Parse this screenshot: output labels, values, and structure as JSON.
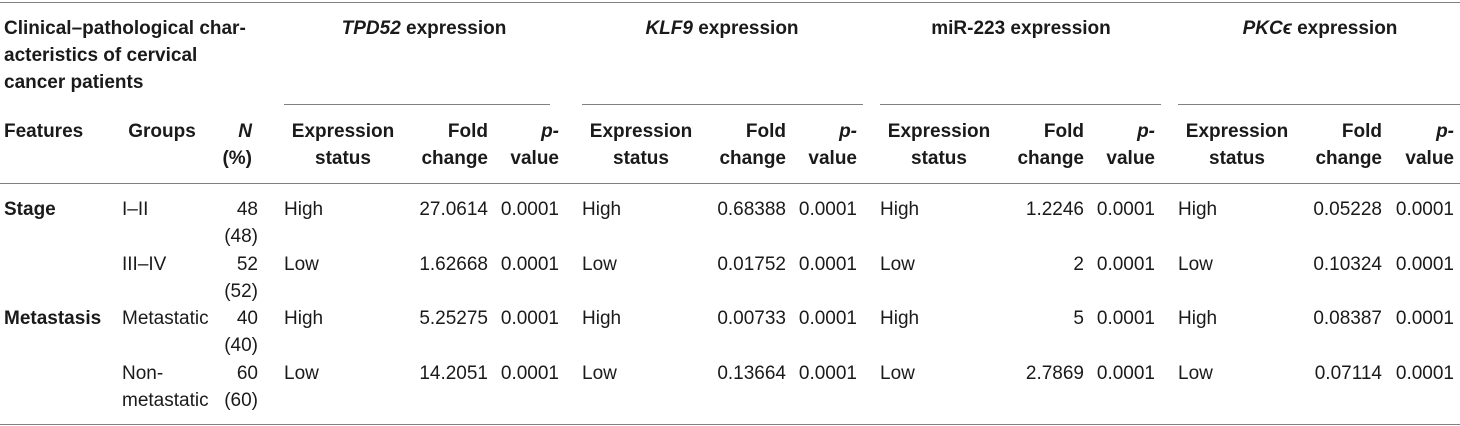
{
  "header": {
    "characteristics_title": [
      "Clinical–pathological char-",
      "acteristics of cervical",
      "cancer patients"
    ],
    "genes": [
      {
        "name": "TPD52",
        "suffix": " expression",
        "italic": true
      },
      {
        "name": "KLF9",
        "suffix": " expression",
        "italic": true
      },
      {
        "name": "miR-223",
        "suffix": " expression",
        "italic": false
      },
      {
        "name": "PKCϵ",
        "suffix": " expression",
        "italic": true
      }
    ],
    "col_features": "Features",
    "col_groups": "Groups",
    "col_n": [
      "N",
      "(%)"
    ],
    "col_expression_status": [
      "Expression",
      "status"
    ],
    "col_fold_change": [
      "Fold",
      "change"
    ],
    "col_p_value": [
      "p-",
      "value"
    ]
  },
  "rows": [
    {
      "feature": "Stage",
      "group": [
        "I–II"
      ],
      "n": [
        "48",
        "(48)"
      ],
      "cells": [
        {
          "status": "High",
          "fold": "27.0614",
          "p": "0.0001"
        },
        {
          "status": "High",
          "fold": "0.68388",
          "p": "0.0001"
        },
        {
          "status": "High",
          "fold": "1.2246",
          "p": "0.0001"
        },
        {
          "status": "High",
          "fold": "0.05228",
          "p": "0.0001"
        }
      ]
    },
    {
      "feature": "",
      "group": [
        "III–IV"
      ],
      "n": [
        "52",
        "(52)"
      ],
      "cells": [
        {
          "status": "Low",
          "fold": "1.62668",
          "p": "0.0001"
        },
        {
          "status": "Low",
          "fold": "0.01752",
          "p": "0.0001"
        },
        {
          "status": "Low",
          "fold": "2",
          "p": "0.0001"
        },
        {
          "status": "Low",
          "fold": "0.10324",
          "p": "0.0001"
        }
      ]
    },
    {
      "feature": "Metastasis",
      "group": [
        "Metastatic"
      ],
      "n": [
        "40",
        "(40)"
      ],
      "cells": [
        {
          "status": "High",
          "fold": "5.25275",
          "p": "0.0001"
        },
        {
          "status": "High",
          "fold": "0.00733",
          "p": "0.0001"
        },
        {
          "status": "High",
          "fold": "5",
          "p": "0.0001"
        },
        {
          "status": "High",
          "fold": "0.08387",
          "p": "0.0001"
        }
      ]
    },
    {
      "feature": "",
      "group": [
        "Non-",
        "metastatic"
      ],
      "n": [
        "60",
        "(60)"
      ],
      "cells": [
        {
          "status": "Low",
          "fold": "14.2051",
          "p": "0.0001"
        },
        {
          "status": "Low",
          "fold": "0.13664",
          "p": "0.0001"
        },
        {
          "status": "Low",
          "fold": "2.7869",
          "p": "0.0001"
        },
        {
          "status": "Low",
          "fold": "0.07114",
          "p": "0.0001"
        }
      ]
    }
  ]
}
